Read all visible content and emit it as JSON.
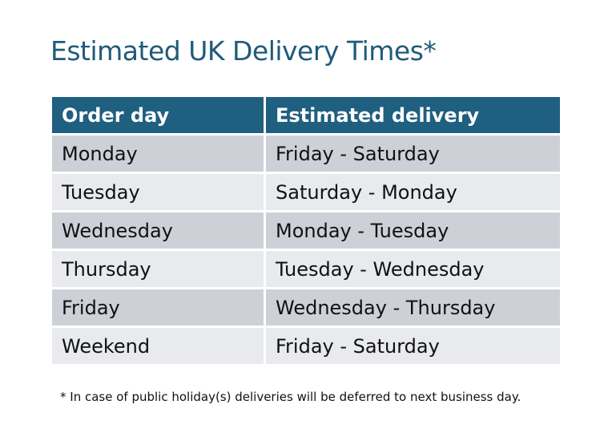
{
  "title": "Estimated UK Delivery Times*",
  "table": {
    "headers": [
      "Order day",
      "Estimated delivery"
    ],
    "rows": [
      [
        "Monday",
        "Friday - Saturday"
      ],
      [
        "Tuesday",
        "Saturday - Monday"
      ],
      [
        "Wednesday",
        "Monday - Tuesday"
      ],
      [
        "Thursday",
        "Tuesday - Wednesday"
      ],
      [
        "Friday",
        "Wednesday - Thursday"
      ],
      [
        "Weekend",
        "Friday - Saturday"
      ]
    ]
  },
  "footnote": "* In case of public holiday(s) deliveries will be deferred to next business day.",
  "colors": {
    "header": "#1f5f80",
    "title": "#1f5a7a",
    "row_odd": "#cdd1d7",
    "row_even": "#e8eaed"
  }
}
